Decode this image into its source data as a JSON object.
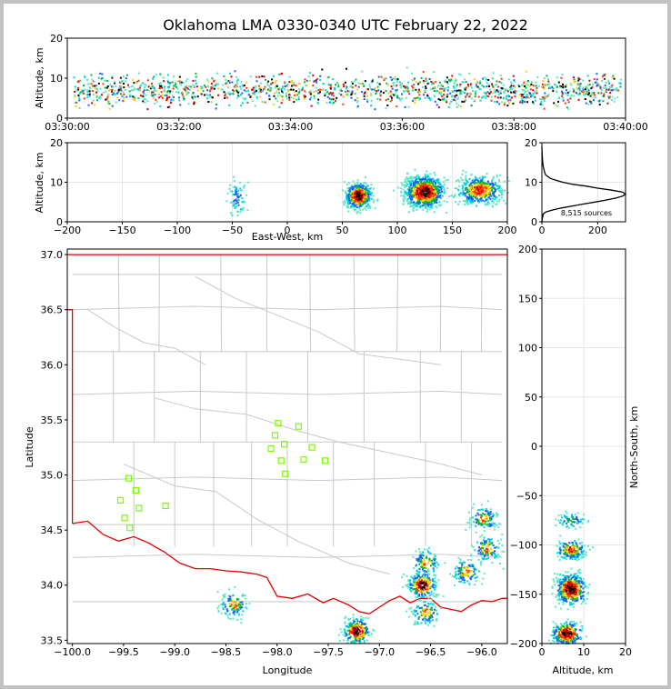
{
  "title": "Oklahoma LMA 0330-0340 UTC February 22, 2022",
  "colors": {
    "state_border": "#e00000",
    "county_lines": "#c8c8c8",
    "station_markers": "#7cfc00",
    "grid": "#e6e6e6",
    "frame": "#c2c2c2"
  },
  "chart_data": [
    {
      "id": "time-altitude",
      "type": "heatmap",
      "ylabel": "Altitude, km",
      "xlim": [
        "03:30:00",
        "03:40:00"
      ],
      "ylim": [
        0,
        20
      ],
      "x_ticks": [
        "03:30:00",
        "03:32:00",
        "03:34:00",
        "03:36:00",
        "03:38:00",
        "03:40:00"
      ],
      "y_ticks": [
        "0",
        "10",
        "20"
      ]
    },
    {
      "id": "ew-altitude",
      "type": "heatmap",
      "xlabel": "East-West, km",
      "ylabel": "Altitude, km",
      "xlim": [
        -200,
        200
      ],
      "ylim": [
        0,
        20
      ],
      "x_ticks": [
        "−200",
        "−150",
        "−100",
        "−50",
        "0",
        "50",
        "100",
        "150",
        "200"
      ],
      "y_ticks": [
        "0",
        "10",
        "20"
      ],
      "clusters_x_km": [
        -45,
        65,
        125,
        175
      ]
    },
    {
      "id": "altitude-histogram",
      "type": "line",
      "annotation": "8,515 sources",
      "xlim": [
        0,
        300
      ],
      "ylim": [
        0,
        20
      ],
      "x_ticks": [
        "0",
        "200"
      ],
      "y_ticks": [
        "0",
        "10",
        "20"
      ],
      "profile": [
        [
          0,
          0
        ],
        [
          2,
          1
        ],
        [
          5,
          2
        ],
        [
          15,
          2.5
        ],
        [
          40,
          3
        ],
        [
          70,
          3.5
        ],
        [
          110,
          4
        ],
        [
          150,
          4.5
        ],
        [
          190,
          5
        ],
        [
          230,
          5.5
        ],
        [
          265,
          6
        ],
        [
          290,
          6.5
        ],
        [
          300,
          7
        ],
        [
          290,
          7.5
        ],
        [
          250,
          8
        ],
        [
          200,
          8.5
        ],
        [
          160,
          9
        ],
        [
          110,
          9.5
        ],
        [
          75,
          10
        ],
        [
          50,
          10.5
        ],
        [
          30,
          11
        ],
        [
          20,
          11.5
        ],
        [
          12,
          12
        ],
        [
          8,
          13
        ],
        [
          5,
          14
        ],
        [
          3,
          15
        ],
        [
          2,
          16
        ],
        [
          1,
          17
        ],
        [
          0,
          19
        ]
      ]
    },
    {
      "id": "plan-view",
      "type": "scatter",
      "xlabel": "Longitude",
      "ylabel": "Latitude",
      "xlim": [
        -100.05,
        -95.75
      ],
      "ylim": [
        33.47,
        37.05
      ],
      "x_ticks": [
        "−100.0",
        "−99.5",
        "−99.0",
        "−98.5",
        "−98.0",
        "−97.5",
        "−97.0",
        "−96.5",
        "−96.0"
      ],
      "y_ticks": [
        "33.5",
        "34.0",
        "34.5",
        "35.0",
        "35.5",
        "36.0",
        "36.5",
        "37.0"
      ],
      "stations": [
        [
          -97.99,
          35.47
        ],
        [
          -97.79,
          35.44
        ],
        [
          -98.02,
          35.36
        ],
        [
          -97.93,
          35.28
        ],
        [
          -98.06,
          35.24
        ],
        [
          -97.66,
          35.25
        ],
        [
          -97.96,
          35.13
        ],
        [
          -97.74,
          35.14
        ],
        [
          -97.53,
          35.13
        ],
        [
          -97.92,
          35.01
        ],
        [
          -99.45,
          34.97
        ],
        [
          -99.38,
          34.86
        ],
        [
          -99.53,
          34.77
        ],
        [
          -99.35,
          34.7
        ],
        [
          -99.09,
          34.72
        ],
        [
          -99.49,
          34.61
        ],
        [
          -99.44,
          34.52
        ]
      ],
      "clusters": [
        [
          -97.22,
          33.58
        ],
        [
          -96.58,
          34.0
        ],
        [
          -96.55,
          34.2
        ],
        [
          -96.55,
          33.75
        ],
        [
          -96.15,
          34.12
        ],
        [
          -95.95,
          34.33
        ],
        [
          -95.98,
          34.6
        ],
        [
          -98.42,
          33.82
        ]
      ]
    },
    {
      "id": "ns-altitude",
      "type": "heatmap",
      "xlabel": "Altitude, km",
      "ylabel": "North-South, km",
      "xlim": [
        0,
        20
      ],
      "ylim": [
        -200,
        200
      ],
      "x_ticks": [
        "0",
        "10",
        "20"
      ],
      "y_ticks": [
        "−200",
        "−150",
        "−100",
        "−50",
        "0",
        "50",
        "100",
        "150",
        "200"
      ]
    }
  ]
}
